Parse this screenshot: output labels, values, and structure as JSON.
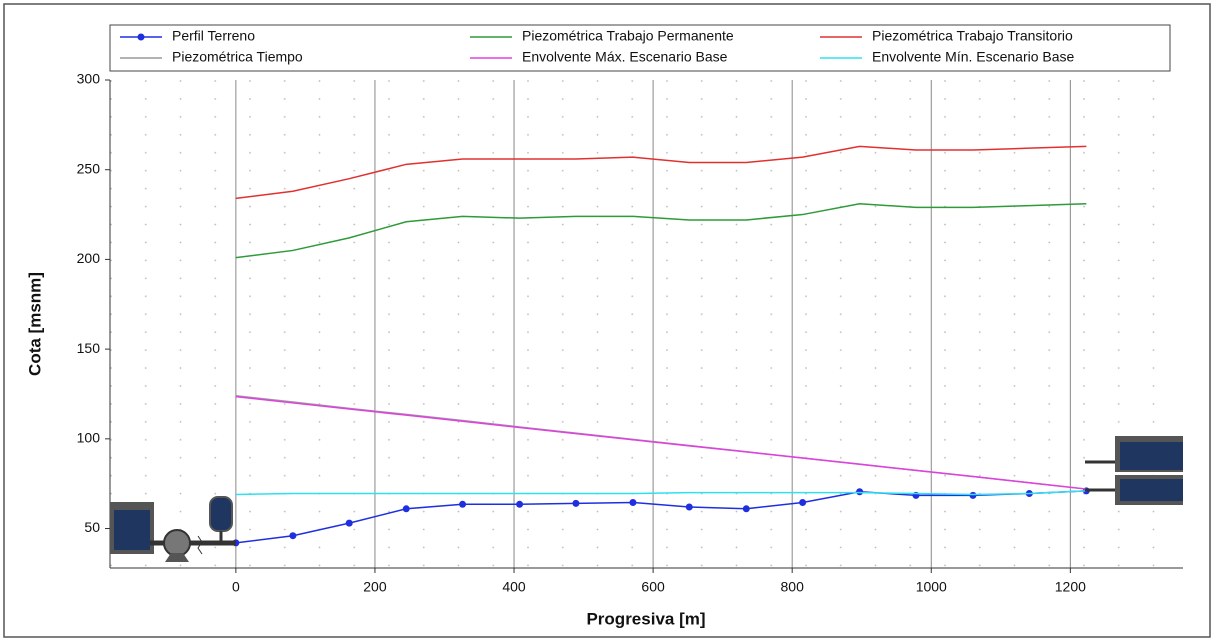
{
  "chart_data": {
    "type": "line",
    "x_label": "Progresiva [m]",
    "y_label": "Cota [msnm]",
    "x": [
      0,
      82,
      163,
      245,
      326,
      408,
      489,
      571,
      652,
      734,
      815,
      897,
      978,
      1060,
      1141,
      1223
    ],
    "series": [
      {
        "name": "Perfil Terreno",
        "color": "#1f2fe0",
        "markers": true,
        "values": [
          42,
          46,
          53,
          61,
          63.5,
          63.5,
          64,
          64.5,
          62,
          61,
          64.5,
          70.5,
          68.5,
          68.5,
          69.5,
          71
        ]
      },
      {
        "name": "Piezométrica Trabajo Permanente",
        "color": "#2e9a3a",
        "values": [
          201,
          205,
          212,
          221,
          224,
          223,
          224,
          224,
          222,
          222,
          225,
          231,
          229,
          229,
          230,
          231
        ]
      },
      {
        "name": "Piezométrica Trabajo Transitorio",
        "color": "#e23030",
        "values": [
          234,
          238,
          245,
          253,
          256,
          256,
          256,
          257,
          254,
          254,
          257,
          263,
          261,
          261,
          262,
          263
        ]
      },
      {
        "name": "Piezométrica Tiempo",
        "color": "#9a9a9a",
        "values": [
          124,
          120.5,
          117,
          113.6,
          110.2,
          106.6,
          103.2,
          99.7,
          96.3,
          92.8,
          89.3,
          85.9,
          82.4,
          79,
          75.5,
          72
        ]
      },
      {
        "name": "Envolvente Máx. Escenario Base",
        "color": "#e040e0",
        "values": [
          123.5,
          120,
          116.6,
          113.2,
          109.8,
          106.3,
          102.9,
          99.5,
          96.1,
          92.7,
          89.3,
          85.8,
          82.4,
          79,
          75.5,
          72
        ]
      },
      {
        "name": "Envolvente Mín. Escenario Base",
        "color": "#30e0f0",
        "values": [
          69,
          69.5,
          69.5,
          69.5,
          69.5,
          69.5,
          69.5,
          69.5,
          70,
          70,
          70,
          70,
          69.5,
          69,
          69.5,
          71
        ]
      }
    ],
    "xlim": [
      -181,
      1362
    ],
    "ylim": [
      28,
      300
    ],
    "xticks": [
      0,
      200,
      400,
      600,
      800,
      1000,
      1200
    ],
    "yticks": [
      50,
      100,
      150,
      200,
      250,
      300
    ],
    "grid": true
  }
}
